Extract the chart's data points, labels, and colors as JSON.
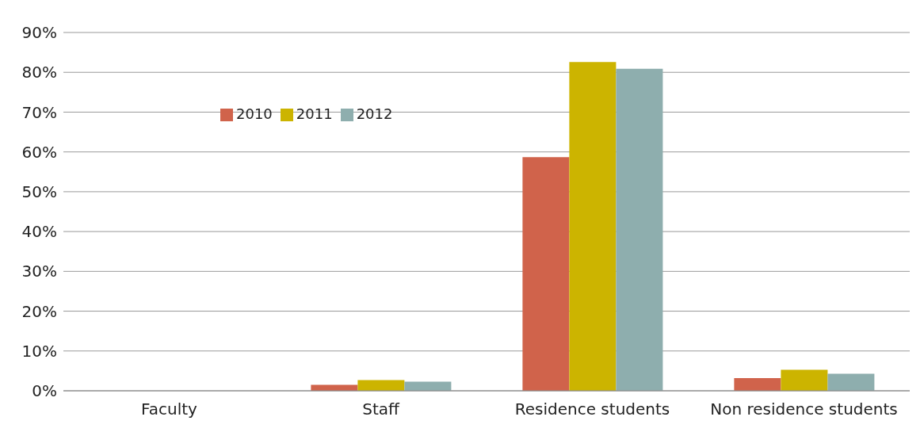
{
  "chart_data": {
    "type": "bar",
    "categories": [
      "Faculty",
      "Staff",
      "Residence students",
      "Non residence students"
    ],
    "series": [
      {
        "name": "2010",
        "color": "#d0634b",
        "values": [
          0,
          1.5,
          58.7,
          3.2
        ]
      },
      {
        "name": "2011",
        "color": "#ccb400",
        "values": [
          0,
          2.7,
          82.6,
          5.3
        ]
      },
      {
        "name": "2012",
        "color": "#8eaeae",
        "values": [
          0,
          2.3,
          80.9,
          4.3
        ]
      }
    ],
    "ylim": [
      0,
      90
    ],
    "yticks": [
      {
        "value": 0,
        "label": "0%"
      },
      {
        "value": 10,
        "label": "10%"
      },
      {
        "value": 20,
        "label": "20%"
      },
      {
        "value": 30,
        "label": "30%"
      },
      {
        "value": 40,
        "label": "40%"
      },
      {
        "value": 50,
        "label": "50%"
      },
      {
        "value": 60,
        "label": "60%"
      },
      {
        "value": 70,
        "label": "70%"
      },
      {
        "value": 80,
        "label": "80%"
      },
      {
        "value": 90,
        "label": "90%"
      }
    ],
    "grid": "y",
    "legend": "top left"
  }
}
